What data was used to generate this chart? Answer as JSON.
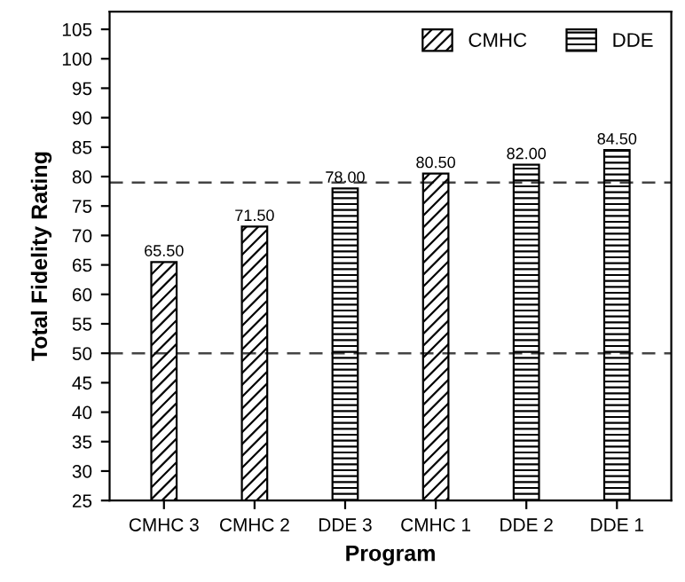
{
  "chart_data": {
    "type": "bar",
    "xlabel": "Program",
    "ylabel": "Total Fidelity Rating",
    "categories": [
      "CMHC 3",
      "CMHC 2",
      "DDE 3",
      "CMHC 1",
      "DDE 2",
      "DDE 1"
    ],
    "series": [
      {
        "name": "CMHC",
        "color": "#000000",
        "values": [
          65.5,
          71.5,
          null,
          80.5,
          null,
          null
        ],
        "value_labels": [
          "65.50",
          "71.50",
          null,
          "80.50",
          null,
          null
        ]
      },
      {
        "name": "DDE",
        "color": "#000000",
        "values": [
          null,
          null,
          78.0,
          null,
          82.0,
          84.5
        ],
        "value_labels": [
          null,
          null,
          "78.00",
          null,
          "82.00",
          "84.50"
        ]
      }
    ],
    "ylim": [
      25,
      108
    ],
    "yticks": [
      25,
      30,
      35,
      40,
      45,
      50,
      55,
      60,
      65,
      70,
      75,
      80,
      85,
      90,
      95,
      100,
      105
    ],
    "ref_lines": [
      {
        "axis": "y",
        "value": 50,
        "line_style": "dashed"
      },
      {
        "axis": "y",
        "value": 79,
        "line_style": "dashed"
      }
    ],
    "legend": "top right",
    "grid": false
  }
}
